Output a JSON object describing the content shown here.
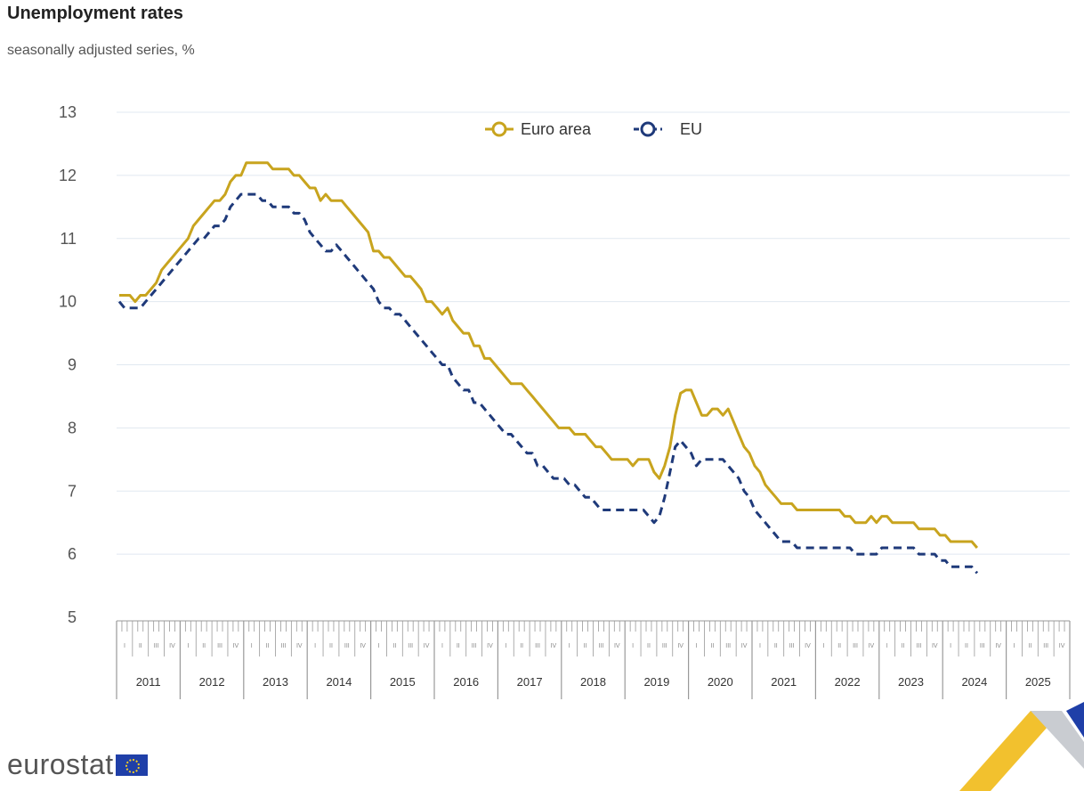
{
  "header": {
    "title": "Unemployment rates",
    "subtitle": "seasonally adjusted series, %"
  },
  "brand": {
    "name": "eurostat"
  },
  "colors": {
    "euro_area": "#c8a41e",
    "eu": "#1f3a7a",
    "grid": "#e1e8f0",
    "axis": "#999999"
  },
  "chart_data": {
    "type": "line",
    "title": "Unemployment rates",
    "subtitle": "seasonally adjusted series, %",
    "ylim": [
      5,
      13
    ],
    "yticks": [
      5,
      6,
      7,
      8,
      9,
      10,
      11,
      12,
      13
    ],
    "grid": true,
    "legend_position": "top-center",
    "x_start": "2011-01",
    "years": [
      "2011",
      "2012",
      "2013",
      "2014",
      "2015",
      "2016",
      "2017",
      "2018",
      "2019",
      "2020",
      "2021",
      "2022",
      "2023",
      "2024",
      "2025"
    ],
    "quarters": [
      "I",
      "II",
      "III",
      "IV"
    ],
    "series": [
      {
        "name": "Euro area",
        "style": "solid",
        "values": [
          10.1,
          10.1,
          10.1,
          10.0,
          10.1,
          10.1,
          10.2,
          10.3,
          10.5,
          10.6,
          10.7,
          10.8,
          10.9,
          11.0,
          11.2,
          11.3,
          11.4,
          11.5,
          11.6,
          11.6,
          11.7,
          11.9,
          12.0,
          12.0,
          12.2,
          12.2,
          12.2,
          12.2,
          12.2,
          12.1,
          12.1,
          12.1,
          12.1,
          12.0,
          12.0,
          11.9,
          11.8,
          11.8,
          11.6,
          11.7,
          11.6,
          11.6,
          11.6,
          11.5,
          11.4,
          11.3,
          11.2,
          11.1,
          10.8,
          10.8,
          10.7,
          10.7,
          10.6,
          10.5,
          10.4,
          10.4,
          10.3,
          10.2,
          10.0,
          10.0,
          9.9,
          9.8,
          9.9,
          9.7,
          9.6,
          9.5,
          9.5,
          9.3,
          9.3,
          9.1,
          9.1,
          9.0,
          8.9,
          8.8,
          8.7,
          8.7,
          8.7,
          8.6,
          8.5,
          8.4,
          8.3,
          8.2,
          8.1,
          8.0,
          8.0,
          8.0,
          7.9,
          7.9,
          7.9,
          7.8,
          7.7,
          7.7,
          7.6,
          7.5,
          7.5,
          7.5,
          7.5,
          7.4,
          7.5,
          7.5,
          7.5,
          7.3,
          7.2,
          7.4,
          7.7,
          8.2,
          8.55,
          8.6,
          8.6,
          8.4,
          8.2,
          8.2,
          8.3,
          8.3,
          8.2,
          8.3,
          8.1,
          7.9,
          7.7,
          7.6,
          7.4,
          7.3,
          7.1,
          7.0,
          6.9,
          6.8,
          6.8,
          6.8,
          6.7,
          6.7,
          6.7,
          6.7,
          6.7,
          6.7,
          6.7,
          6.7,
          6.7,
          6.6,
          6.6,
          6.5,
          6.5,
          6.5,
          6.6,
          6.5,
          6.6,
          6.6,
          6.5,
          6.5,
          6.5,
          6.5,
          6.5,
          6.4,
          6.4,
          6.4,
          6.4,
          6.3,
          6.3,
          6.2,
          6.2,
          6.2,
          6.2,
          6.2,
          6.1
        ]
      },
      {
        "name": "EU",
        "style": "dashed",
        "values": [
          10.0,
          9.9,
          9.9,
          9.9,
          9.9,
          10.0,
          10.1,
          10.2,
          10.3,
          10.4,
          10.5,
          10.6,
          10.7,
          10.8,
          10.9,
          11.0,
          11.0,
          11.1,
          11.2,
          11.2,
          11.3,
          11.5,
          11.6,
          11.7,
          11.7,
          11.7,
          11.7,
          11.6,
          11.6,
          11.5,
          11.5,
          11.5,
          11.5,
          11.4,
          11.4,
          11.3,
          11.1,
          11.0,
          10.9,
          10.8,
          10.8,
          10.9,
          10.8,
          10.7,
          10.6,
          10.5,
          10.4,
          10.3,
          10.2,
          10.0,
          9.9,
          9.9,
          9.8,
          9.8,
          9.7,
          9.6,
          9.5,
          9.4,
          9.3,
          9.2,
          9.1,
          9.0,
          9.0,
          8.8,
          8.7,
          8.6,
          8.6,
          8.4,
          8.4,
          8.3,
          8.2,
          8.1,
          8.0,
          7.9,
          7.9,
          7.8,
          7.7,
          7.6,
          7.6,
          7.4,
          7.4,
          7.3,
          7.2,
          7.2,
          7.2,
          7.1,
          7.1,
          7.0,
          6.9,
          6.9,
          6.8,
          6.7,
          6.7,
          6.7,
          6.7,
          6.7,
          6.7,
          6.7,
          6.7,
          6.7,
          6.6,
          6.5,
          6.6,
          6.9,
          7.3,
          7.7,
          7.8,
          7.7,
          7.6,
          7.4,
          7.5,
          7.5,
          7.5,
          7.5,
          7.5,
          7.4,
          7.3,
          7.2,
          7.0,
          6.9,
          6.7,
          6.6,
          6.5,
          6.4,
          6.3,
          6.2,
          6.2,
          6.2,
          6.1,
          6.1,
          6.1,
          6.1,
          6.1,
          6.1,
          6.1,
          6.1,
          6.1,
          6.1,
          6.1,
          6.0,
          6.0,
          6.0,
          6.0,
          6.0,
          6.1,
          6.1,
          6.1,
          6.1,
          6.1,
          6.1,
          6.1,
          6.0,
          6.0,
          6.0,
          6.0,
          5.9,
          5.9,
          5.8,
          5.8,
          5.8,
          5.8,
          5.8,
          5.7
        ]
      }
    ]
  }
}
